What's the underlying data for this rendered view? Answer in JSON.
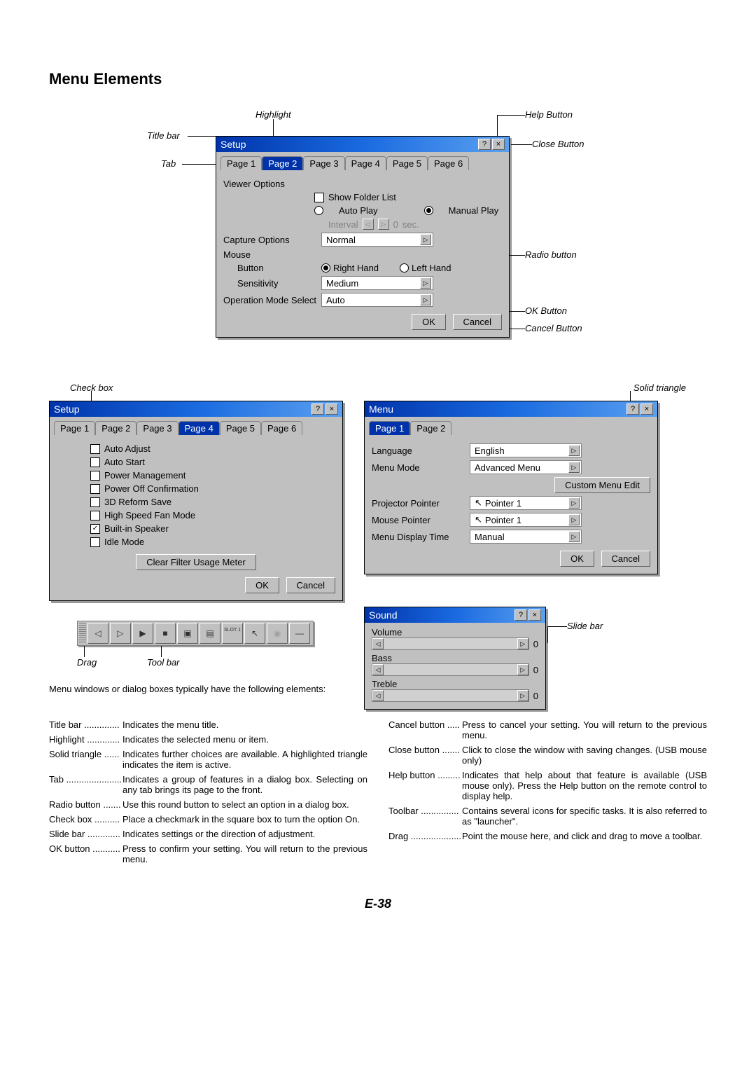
{
  "heading": "Menu Elements",
  "callouts": {
    "titlebar": "Title bar",
    "highlight": "Highlight",
    "help": "Help Button",
    "close": "Close Button",
    "tab": "Tab",
    "radio": "Radio button",
    "ok": "OK Button",
    "cancel": "Cancel Button",
    "solidTri": "Solid triangle",
    "checkbox": "Check box",
    "drag": "Drag",
    "toolbar": "Tool bar",
    "slidebar": "Slide bar"
  },
  "dialog1": {
    "title": "Setup",
    "tabs": [
      "Page 1",
      "Page 2",
      "Page 3",
      "Page 4",
      "Page 5",
      "Page 6"
    ],
    "activeTab": 1,
    "viewerOptions": "Viewer Options",
    "showFolderList": "Show Folder List",
    "autoPlay": "Auto Play",
    "manualPlay": "Manual Play",
    "interval": "Interval",
    "intervalVal": "0",
    "sec": "sec.",
    "captureOptions": "Capture Options",
    "captureVal": "Normal",
    "mouse": "Mouse",
    "buttonLbl": "Button",
    "rightHand": "Right Hand",
    "leftHand": "Left Hand",
    "sensitivity": "Sensitivity",
    "sensVal": "Medium",
    "opMode": "Operation Mode Select",
    "opVal": "Auto",
    "ok": "OK",
    "cancel": "Cancel"
  },
  "dialog2": {
    "title": "Setup",
    "tabs": [
      "Page 1",
      "Page 2",
      "Page 3",
      "Page 4",
      "Page 5",
      "Page 6"
    ],
    "activeTab": 3,
    "items": [
      {
        "label": "Auto Adjust",
        "checked": false
      },
      {
        "label": "Auto Start",
        "checked": false
      },
      {
        "label": "Power Management",
        "checked": false
      },
      {
        "label": "Power Off Confirmation",
        "checked": false
      },
      {
        "label": "3D Reform Save",
        "checked": false
      },
      {
        "label": "High Speed Fan Mode",
        "checked": false
      },
      {
        "label": "Built-in Speaker",
        "checked": true
      },
      {
        "label": "Idle Mode",
        "checked": false
      }
    ],
    "clear": "Clear Filter Usage Meter",
    "ok": "OK",
    "cancel": "Cancel"
  },
  "dialog3": {
    "title": "Menu",
    "tabs": [
      "Page 1",
      "Page 2"
    ],
    "activeTab": 0,
    "language": "Language",
    "languageVal": "English",
    "menuMode": "Menu Mode",
    "menuModeVal": "Advanced Menu",
    "customMenu": "Custom Menu Edit",
    "projectorPointer": "Projector Pointer",
    "projectorPointerVal": "Pointer 1",
    "mousePointer": "Mouse Pointer",
    "mousePointerVal": "Pointer 1",
    "menuDisplayTime": "Menu Display Time",
    "menuDisplayTimeVal": "Manual",
    "ok": "OK",
    "cancel": "Cancel"
  },
  "dialog4": {
    "title": "Sound",
    "volume": "Volume",
    "bass": "Bass",
    "treble": "Treble",
    "val": "0"
  },
  "toolbar": {
    "slot": "SLOT 1"
  },
  "intro": "Menu windows or dialog boxes typically have the following elements:",
  "descLeft": [
    {
      "term": "Title bar",
      "dots": "..............",
      "def": "Indicates the menu title."
    },
    {
      "term": "Highlight",
      "dots": ".............",
      "def": "Indicates the selected menu or item."
    },
    {
      "term": "Solid triangle",
      "dots": "......",
      "def": "Indicates further choices are available. A highlighted triangle indicates the item is active."
    },
    {
      "term": "Tab",
      "dots": "......................",
      "def": "Indicates a group of features in a dialog box. Selecting on any tab brings its page to the front."
    },
    {
      "term": "Radio button",
      "dots": ".......",
      "def": "Use this round button to select an option in a dialog box."
    },
    {
      "term": "Check box",
      "dots": "..........",
      "def": "Place a checkmark in the square box to turn the option On."
    },
    {
      "term": "Slide bar",
      "dots": ".............",
      "def": "Indicates settings or the direction of adjustment."
    },
    {
      "term": "OK button",
      "dots": "...........",
      "def": "Press to confirm your setting. You will return to the previous menu."
    }
  ],
  "descRight": [
    {
      "term": "Cancel button",
      "dots": ".....",
      "def": "Press to cancel your setting. You will return to the previous menu."
    },
    {
      "term": "Close button",
      "dots": ".......",
      "def": "Click to close the window with saving changes. (USB mouse only)"
    },
    {
      "term": "Help button",
      "dots": ".........",
      "def": "Indicates that help about that feature is available (USB mouse only). Press the Help button on the remote control to display help."
    },
    {
      "term": "Toolbar",
      "dots": "...............",
      "def": "Contains several icons for specific tasks. It is also referred to as \"launcher\"."
    },
    {
      "term": "Drag",
      "dots": "....................",
      "def": "Point the mouse here, and click and drag to move a toolbar."
    }
  ],
  "pageNum": "E-38"
}
